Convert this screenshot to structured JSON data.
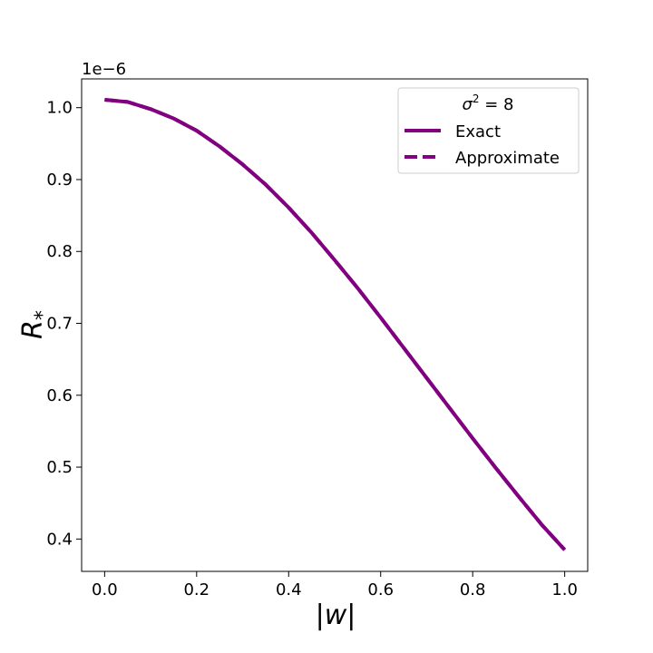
{
  "chart_data": {
    "type": "line",
    "title": "",
    "xlabel": "|w|",
    "ylabel": "R",
    "ylabel_subscript": "*",
    "y_scale_label": "1e−6",
    "xlim": [
      -0.05,
      1.05
    ],
    "ylim": [
      0.355,
      1.04
    ],
    "xticks": [
      0.0,
      0.2,
      0.4,
      0.6,
      0.8,
      1.0
    ],
    "xtick_labels": [
      "0.0",
      "0.2",
      "0.4",
      "0.6",
      "0.8",
      "1.0"
    ],
    "yticks": [
      0.4,
      0.5,
      0.6,
      0.7,
      0.8,
      0.9,
      1.0
    ],
    "ytick_labels": [
      "0.4",
      "0.5",
      "0.6",
      "0.7",
      "0.8",
      "0.9",
      "1.0"
    ],
    "grid": false,
    "legend": {
      "placement": "top-right",
      "title_symbol": "σ",
      "title_superscript": "2",
      "title_rest": " = 8"
    },
    "series": [
      {
        "name": "Exact",
        "style": "solid",
        "color": "#800080",
        "x": [
          0.0,
          0.05,
          0.1,
          0.15,
          0.2,
          0.25,
          0.3,
          0.35,
          0.4,
          0.45,
          0.5,
          0.55,
          0.6,
          0.65,
          0.7,
          0.75,
          0.8,
          0.85,
          0.9,
          0.95,
          1.0
        ],
        "y": [
          1.011,
          1.008,
          0.998,
          0.985,
          0.968,
          0.946,
          0.921,
          0.893,
          0.861,
          0.826,
          0.788,
          0.749,
          0.708,
          0.666,
          0.624,
          0.582,
          0.54,
          0.499,
          0.459,
          0.42,
          0.385
        ]
      },
      {
        "name": "Approximate",
        "style": "dashed",
        "color": "#800080",
        "x": [
          0.0,
          0.05,
          0.1,
          0.15,
          0.2,
          0.25,
          0.3,
          0.35,
          0.4,
          0.45,
          0.5,
          0.55,
          0.6,
          0.65,
          0.7,
          0.75,
          0.8,
          0.85,
          0.9,
          0.95,
          1.0
        ],
        "y": [
          1.011,
          1.008,
          0.998,
          0.985,
          0.968,
          0.946,
          0.921,
          0.893,
          0.861,
          0.826,
          0.788,
          0.749,
          0.708,
          0.666,
          0.624,
          0.582,
          0.54,
          0.499,
          0.459,
          0.42,
          0.385
        ]
      }
    ]
  }
}
